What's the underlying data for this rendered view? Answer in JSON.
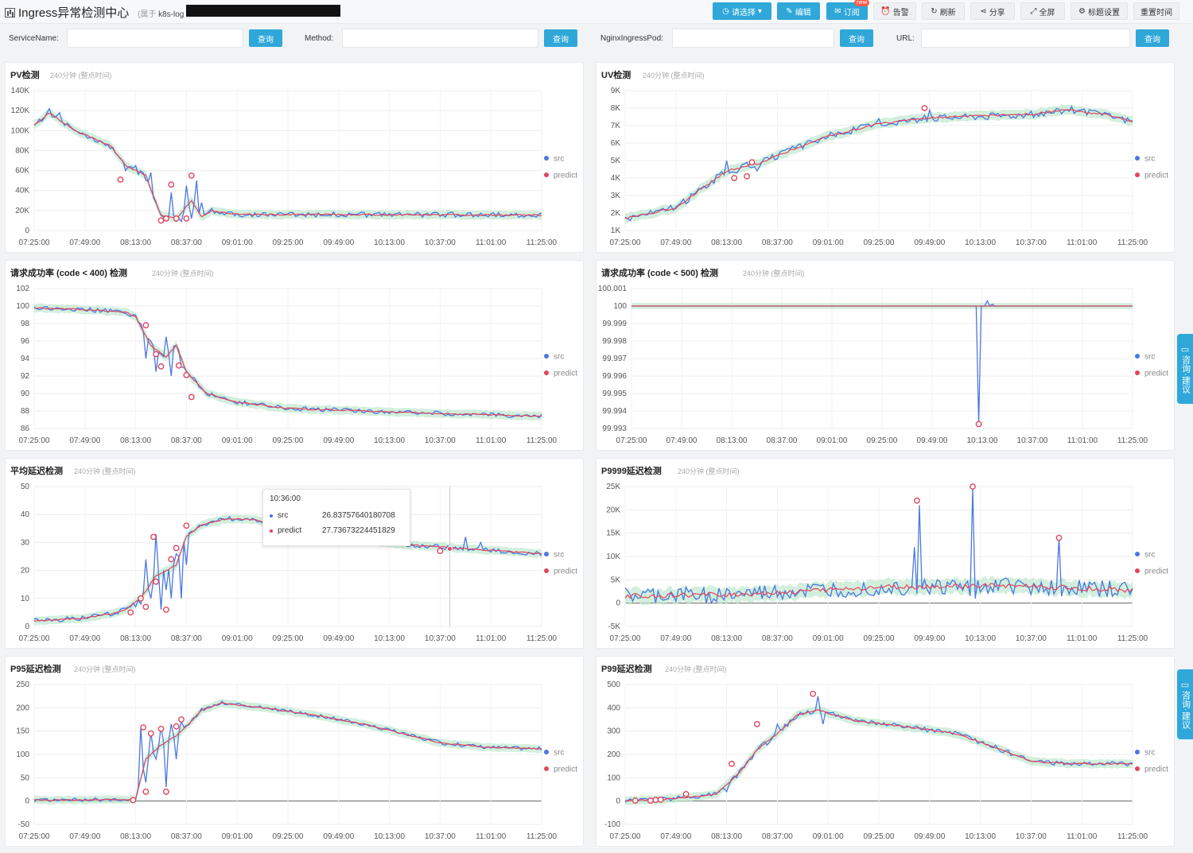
{
  "header": {
    "title": "Ingress异常检测中心",
    "breadcrumb_prefix": "(属于",
    "breadcrumb_value": "k8s-log",
    "buttons": {
      "select": "请选择",
      "edit": "编辑",
      "subscribe": "订阅",
      "subscribe_badge": "new",
      "alert": "告警",
      "refresh": "刷新",
      "share": "分享",
      "fullscreen": "全屏",
      "title_settings": "标题设置",
      "reset_time": "重置时间"
    }
  },
  "filters": [
    {
      "label": "ServiceName:",
      "value": "",
      "button": "查询"
    },
    {
      "label": "Method:",
      "value": "",
      "button": "查询"
    },
    {
      "label": "NginxIngressPod:",
      "value": "",
      "button": "查询"
    },
    {
      "label": "URL:",
      "value": "",
      "button": "查询"
    }
  ],
  "panel_meta": "240分钟 (整点时间)",
  "legend": {
    "src": "src",
    "predict": "predict"
  },
  "colors": {
    "src": "#4a78e0",
    "predict": "#e0455e",
    "band": "#bfe8cf",
    "accent": "#2fa7d9"
  },
  "tooltip": {
    "time": "10:36:00",
    "rows": [
      {
        "name": "src",
        "value": "26.83757640180708"
      },
      {
        "name": "predict",
        "value": "27.73673224451829"
      }
    ]
  },
  "side_tab_label": "咨询·建议",
  "chart_data": [
    {
      "id": "pv",
      "type": "line",
      "title": "PV检测",
      "yticks": [
        "140K",
        "120K",
        "100K",
        "80K",
        "60K",
        "40K",
        "20K",
        "0"
      ],
      "ylim": [
        0,
        140000
      ],
      "xticks": [
        "07:25:00",
        "07:49:00",
        "08:13:00",
        "08:37:00",
        "09:01:00",
        "09:25:00",
        "09:49:00",
        "10:13:00",
        "10:37:00",
        "11:01:00",
        "11:25:00"
      ],
      "curve": [
        [
          0,
          105000
        ],
        [
          3,
          118000
        ],
        [
          8,
          100000
        ],
        [
          15,
          85000
        ],
        [
          18,
          65000
        ],
        [
          22,
          55000
        ],
        [
          25,
          15000
        ],
        [
          28,
          12000
        ],
        [
          31,
          30000
        ],
        [
          33,
          14000
        ],
        [
          35,
          20000
        ],
        [
          40,
          16000
        ],
        [
          60,
          16000
        ],
        [
          100,
          15500
        ]
      ],
      "jitter": 2500,
      "spikes": [
        [
          3,
          122000
        ],
        [
          5,
          118000
        ],
        [
          10,
          96000
        ],
        [
          15,
          82000
        ],
        [
          18,
          60000
        ],
        [
          20,
          65000
        ],
        [
          22,
          50000
        ],
        [
          23,
          58000
        ],
        [
          25,
          15000
        ],
        [
          26,
          10000
        ],
        [
          27,
          38000
        ],
        [
          28,
          12000
        ],
        [
          29,
          9000
        ],
        [
          30,
          45000
        ],
        [
          31,
          12000
        ],
        [
          32,
          50000
        ],
        [
          33,
          28000
        ],
        [
          35,
          22000
        ]
      ],
      "anomalies": [
        [
          17,
          51000
        ],
        [
          25,
          10000
        ],
        [
          26,
          12000
        ],
        [
          27,
          46000
        ],
        [
          28,
          12000
        ],
        [
          30,
          12000
        ],
        [
          31,
          55000
        ]
      ]
    },
    {
      "id": "uv",
      "type": "line",
      "title": "UV检测",
      "yticks": [
        "9K",
        "8K",
        "7K",
        "6K",
        "5K",
        "4K",
        "3K",
        "2K",
        "1K"
      ],
      "ylim": [
        1000,
        9000
      ],
      "xticks": [
        "07:25:00",
        "07:49:00",
        "08:13:00",
        "08:37:00",
        "09:01:00",
        "09:25:00",
        "09:49:00",
        "10:13:00",
        "10:37:00",
        "11:01:00",
        "11:25:00"
      ],
      "curve": [
        [
          0,
          1700
        ],
        [
          5,
          2000
        ],
        [
          10,
          2300
        ],
        [
          16,
          3600
        ],
        [
          20,
          4400
        ],
        [
          23,
          4600
        ],
        [
          27,
          4900
        ],
        [
          30,
          5300
        ],
        [
          40,
          6400
        ],
        [
          50,
          7100
        ],
        [
          60,
          7450
        ],
        [
          80,
          7650
        ],
        [
          87,
          7900
        ],
        [
          95,
          7600
        ],
        [
          100,
          7250
        ]
      ],
      "jitter": 200,
      "spikes": [
        [
          20,
          5000
        ],
        [
          22,
          4300
        ],
        [
          24,
          4900
        ],
        [
          26,
          4400
        ],
        [
          30,
          5100
        ],
        [
          50,
          7400
        ],
        [
          60,
          7900
        ],
        [
          88,
          8100
        ]
      ],
      "anomalies": [
        [
          21.5,
          4000
        ],
        [
          24,
          4100
        ],
        [
          25,
          4900
        ],
        [
          59,
          8000
        ]
      ]
    },
    {
      "id": "sr400",
      "type": "line",
      "title": "请求成功率 (code < 400) 检测",
      "yticks": [
        "102",
        "100",
        "98",
        "96",
        "94",
        "92",
        "90",
        "88",
        "86"
      ],
      "ylim": [
        86,
        102
      ],
      "xticks": [
        "07:25:00",
        "07:49:00",
        "08:13:00",
        "08:37:00",
        "09:01:00",
        "09:25:00",
        "09:49:00",
        "10:13:00",
        "10:37:00",
        "11:01:00",
        "11:25:00"
      ],
      "curve": [
        [
          0,
          99.8
        ],
        [
          10,
          99.6
        ],
        [
          18,
          99.3
        ],
        [
          20,
          98.8
        ],
        [
          23,
          95.5
        ],
        [
          26,
          94.2
        ],
        [
          28,
          95.5
        ],
        [
          30,
          92.5
        ],
        [
          34,
          90.0
        ],
        [
          40,
          89.0
        ],
        [
          50,
          88.3
        ],
        [
          70,
          87.9
        ],
        [
          100,
          87.4
        ]
      ],
      "jitter": 0.25,
      "spikes": [
        [
          21,
          98.0
        ],
        [
          22,
          94.0
        ],
        [
          23,
          96.0
        ],
        [
          24,
          92.5
        ],
        [
          25,
          94.5
        ],
        [
          26,
          96.5
        ],
        [
          27,
          92.0
        ],
        [
          28,
          95.5
        ],
        [
          29,
          93.0
        ]
      ],
      "anomalies": [
        [
          22,
          97.8
        ],
        [
          24,
          94.5
        ],
        [
          25,
          93.1
        ],
        [
          28.5,
          93.2
        ],
        [
          30,
          92.1
        ],
        [
          31,
          89.6
        ]
      ]
    },
    {
      "id": "sr500",
      "type": "line",
      "title": "请求成功率 (code < 500) 检测",
      "yticks": [
        "100.001",
        "100",
        "99.999",
        "99.998",
        "99.997",
        "99.996",
        "99.995",
        "99.994",
        "99.993"
      ],
      "ylim": [
        99.993,
        100.001
      ],
      "xticks": [
        "07:25:00",
        "07:49:00",
        "08:13:00",
        "08:37:00",
        "09:01:00",
        "09:25:00",
        "09:49:00",
        "10:13:00",
        "10:37:00",
        "11:01:00",
        "11:25:00"
      ],
      "curve": [
        [
          0,
          100
        ],
        [
          100,
          100
        ]
      ],
      "jitter": 0,
      "spikes": [
        [
          68.8,
          100
        ],
        [
          69.3,
          99.99325
        ],
        [
          69.8,
          100
        ],
        [
          71,
          100.0003
        ],
        [
          72,
          100.0001
        ],
        [
          73,
          100
        ]
      ],
      "anomalies": [
        [
          69.3,
          99.99325
        ]
      ]
    },
    {
      "id": "avg_latency",
      "type": "line",
      "title": "平均延迟检测",
      "yticks": [
        "50",
        "40",
        "30",
        "20",
        "10",
        "0"
      ],
      "ylim": [
        0,
        50
      ],
      "xticks": [
        "07:25:00",
        "07:49:00",
        "08:13:00",
        "08:37:00",
        "09:01:00",
        "09:25:00",
        "09:49:00",
        "10:13:00",
        "10:37:00",
        "11:01:00",
        "11:25:00"
      ],
      "curve": [
        [
          0,
          2
        ],
        [
          10,
          3
        ],
        [
          15,
          4.5
        ],
        [
          18,
          6
        ],
        [
          21,
          10
        ],
        [
          24,
          18
        ],
        [
          28,
          22
        ],
        [
          30,
          32
        ],
        [
          33,
          36.5
        ],
        [
          38,
          38.5
        ],
        [
          44,
          38
        ],
        [
          48,
          36
        ],
        [
          55,
          32
        ],
        [
          75,
          29
        ],
        [
          100,
          26
        ]
      ],
      "jitter": 0.8,
      "spikes": [
        [
          20,
          7
        ],
        [
          21,
          8
        ],
        [
          22,
          24
        ],
        [
          23,
          10
        ],
        [
          24,
          33
        ],
        [
          25,
          6
        ],
        [
          26,
          13
        ],
        [
          27,
          10
        ],
        [
          28,
          26
        ],
        [
          29,
          10
        ],
        [
          30,
          22
        ],
        [
          31,
          34
        ],
        [
          85,
          32
        ],
        [
          88,
          30
        ]
      ],
      "anomalies": [
        [
          19,
          5
        ],
        [
          21,
          10
        ],
        [
          22,
          7
        ],
        [
          23.5,
          32
        ],
        [
          24,
          16
        ],
        [
          26,
          6
        ],
        [
          27,
          24
        ],
        [
          28,
          28
        ],
        [
          30,
          36
        ],
        [
          80,
          27
        ]
      ]
    },
    {
      "id": "p9999",
      "type": "line",
      "title": "P9999延迟检测",
      "yticks": [
        "25K",
        "20K",
        "15K",
        "10K",
        "5K",
        "0",
        "-5K"
      ],
      "ylim": [
        -5000,
        25000
      ],
      "xticks": [
        "07:25:00",
        "07:49:00",
        "08:13:00",
        "08:37:00",
        "09:01:00",
        "09:25:00",
        "09:49:00",
        "10:13:00",
        "10:37:00",
        "11:01:00",
        "11:25:00"
      ],
      "curve": [
        [
          0,
          1500
        ],
        [
          20,
          1800
        ],
        [
          40,
          2800
        ],
        [
          50,
          3400
        ],
        [
          60,
          3500
        ],
        [
          75,
          3800
        ],
        [
          90,
          3200
        ],
        [
          100,
          2800
        ]
      ],
      "jitter": 1800,
      "spikes": [
        [
          57,
          12000
        ],
        [
          57.5,
          2000
        ],
        [
          58,
          21000
        ],
        [
          58.5,
          3000
        ],
        [
          68,
          1500
        ],
        [
          68.5,
          24500
        ],
        [
          69,
          1000
        ],
        [
          85,
          3000
        ],
        [
          85.5,
          14000
        ],
        [
          86,
          1500
        ]
      ],
      "anomalies": [
        [
          57.5,
          22000
        ],
        [
          68.5,
          25000
        ],
        [
          85.5,
          14000
        ]
      ]
    },
    {
      "id": "p95",
      "type": "line",
      "title": "P95延迟检测",
      "yticks": [
        "250",
        "200",
        "150",
        "100",
        "50",
        "0",
        "-50"
      ],
      "ylim": [
        -50,
        250
      ],
      "xticks": [
        "07:25:00",
        "07:49:00",
        "08:13:00",
        "08:37:00",
        "09:01:00",
        "09:25:00",
        "09:49:00",
        "10:13:00",
        "10:37:00",
        "11:01:00",
        "11:25:00"
      ],
      "curve": [
        [
          0,
          2
        ],
        [
          18,
          3
        ],
        [
          20,
          5
        ],
        [
          22,
          90
        ],
        [
          25,
          120
        ],
        [
          28,
          140
        ],
        [
          30,
          160
        ],
        [
          33,
          195
        ],
        [
          37,
          210
        ],
        [
          45,
          200
        ],
        [
          55,
          185
        ],
        [
          65,
          165
        ],
        [
          80,
          125
        ],
        [
          90,
          115
        ],
        [
          100,
          112
        ]
      ],
      "jitter": 4,
      "spikes": [
        [
          21,
          160
        ],
        [
          22,
          40
        ],
        [
          23,
          150
        ],
        [
          24,
          90
        ],
        [
          25,
          160
        ],
        [
          26,
          30
        ],
        [
          27,
          165
        ],
        [
          28,
          90
        ],
        [
          29,
          170
        ]
      ],
      "anomalies": [
        [
          19.5,
          2
        ],
        [
          21.5,
          158
        ],
        [
          22,
          20
        ],
        [
          23,
          145
        ],
        [
          25,
          155
        ],
        [
          26,
          20
        ],
        [
          28,
          160
        ],
        [
          29,
          175
        ]
      ]
    },
    {
      "id": "p99",
      "type": "line",
      "title": "P99延迟检测",
      "yticks": [
        "500",
        "400",
        "300",
        "200",
        "100",
        "0",
        "-100"
      ],
      "ylim": [
        -100,
        500
      ],
      "xticks": [
        "07:25:00",
        "07:49:00",
        "08:13:00",
        "08:37:00",
        "09:01:00",
        "09:25:00",
        "09:49:00",
        "10:13:00",
        "10:37:00",
        "11:01:00",
        "11:25:00"
      ],
      "curve": [
        [
          0,
          2
        ],
        [
          6,
          5
        ],
        [
          12,
          15
        ],
        [
          18,
          30
        ],
        [
          22,
          110
        ],
        [
          26,
          220
        ],
        [
          30,
          290
        ],
        [
          34,
          370
        ],
        [
          38,
          390
        ],
        [
          45,
          345
        ],
        [
          55,
          320
        ],
        [
          65,
          290
        ],
        [
          73,
          230
        ],
        [
          80,
          170
        ],
        [
          88,
          160
        ],
        [
          100,
          160
        ]
      ],
      "jitter": 10,
      "spikes": [
        [
          20,
          40
        ],
        [
          22,
          100
        ],
        [
          25,
          180
        ],
        [
          28,
          240
        ],
        [
          30,
          330
        ],
        [
          38,
          450
        ],
        [
          39,
          330
        ]
      ],
      "anomalies": [
        [
          2,
          2
        ],
        [
          5,
          2
        ],
        [
          6,
          5
        ],
        [
          7,
          6
        ],
        [
          12,
          30
        ],
        [
          21,
          160
        ],
        [
          26,
          330
        ],
        [
          37,
          460
        ]
      ]
    }
  ]
}
